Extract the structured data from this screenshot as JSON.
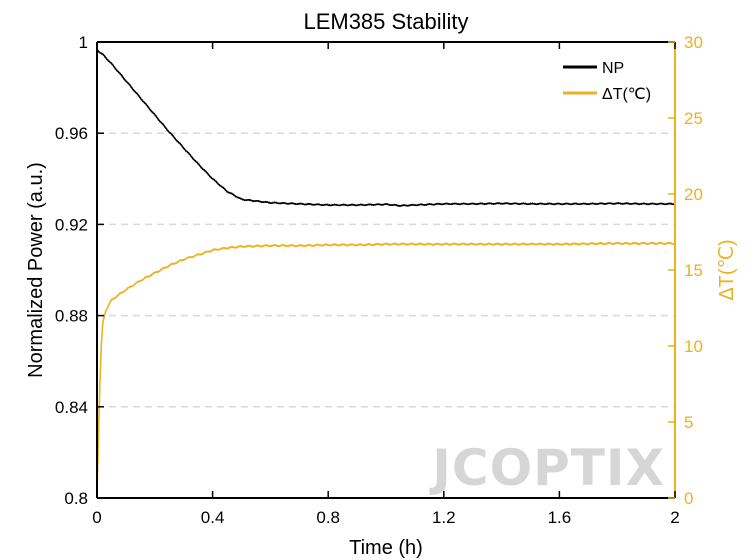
{
  "chart_data": {
    "type": "line",
    "title": "LEM385 Stability",
    "xlabel": "Time (h)",
    "ylabel": "Normalized Power (a.u.)",
    "y2label": "ΔT(℃)",
    "xlim": [
      0,
      2
    ],
    "ylim": [
      0.8,
      1.0
    ],
    "y2lim": [
      0,
      30
    ],
    "x_ticks": [
      0,
      0.4,
      0.8,
      1.2,
      1.6,
      2
    ],
    "x_tick_labels": [
      "0",
      "0.4",
      "0.8",
      "1.2",
      "1.6",
      "2"
    ],
    "y_ticks": [
      0.8,
      0.84,
      0.88,
      0.92,
      0.96,
      1.0
    ],
    "y_tick_labels": [
      "0.8",
      "0.84",
      "0.88",
      "0.92",
      "0.96",
      "1"
    ],
    "y2_ticks": [
      0,
      5,
      10,
      15,
      20,
      25,
      30
    ],
    "y2_tick_labels": [
      "0",
      "5",
      "10",
      "15",
      "20",
      "25",
      "30"
    ],
    "grid": "horizontal dashed",
    "legend_position": "top-right",
    "colors": {
      "np": "#000000",
      "dt": "#EDB120",
      "grid": "#d9d9d9"
    },
    "series": [
      {
        "name": "NP",
        "axis": "left",
        "x": [
          0,
          0.02,
          0.05,
          0.1,
          0.15,
          0.2,
          0.25,
          0.3,
          0.35,
          0.4,
          0.45,
          0.5,
          0.6,
          0.7,
          0.8,
          0.9,
          1.0,
          1.05,
          1.1,
          1.2,
          1.3,
          1.4,
          1.5,
          1.6,
          1.7,
          1.8,
          1.9,
          2.0
        ],
        "y": [
          0.9965,
          0.9945,
          0.9905,
          0.983,
          0.9755,
          0.968,
          0.9605,
          0.9535,
          0.9465,
          0.94,
          0.9345,
          0.931,
          0.9295,
          0.929,
          0.9285,
          0.9285,
          0.9288,
          0.9282,
          0.9285,
          0.929,
          0.929,
          0.9292,
          0.929,
          0.929,
          0.929,
          0.9292,
          0.929,
          0.929
        ]
      },
      {
        "name": "ΔT(℃)",
        "axis": "right",
        "x": [
          0,
          0.005,
          0.01,
          0.015,
          0.02,
          0.03,
          0.04,
          0.05,
          0.07,
          0.1,
          0.15,
          0.2,
          0.25,
          0.3,
          0.35,
          0.4,
          0.45,
          0.5,
          0.6,
          0.7,
          0.8,
          0.9,
          1.0,
          1.2,
          1.4,
          1.6,
          1.8,
          2.0
        ],
        "y": [
          0.5,
          4.0,
          7.5,
          10.0,
          11.5,
          12.3,
          12.7,
          13.0,
          13.3,
          13.7,
          14.3,
          14.8,
          15.3,
          15.7,
          16.0,
          16.3,
          16.45,
          16.55,
          16.6,
          16.6,
          16.65,
          16.65,
          16.7,
          16.7,
          16.7,
          16.7,
          16.75,
          16.75
        ]
      }
    ]
  },
  "watermark": "JCOPTIX"
}
